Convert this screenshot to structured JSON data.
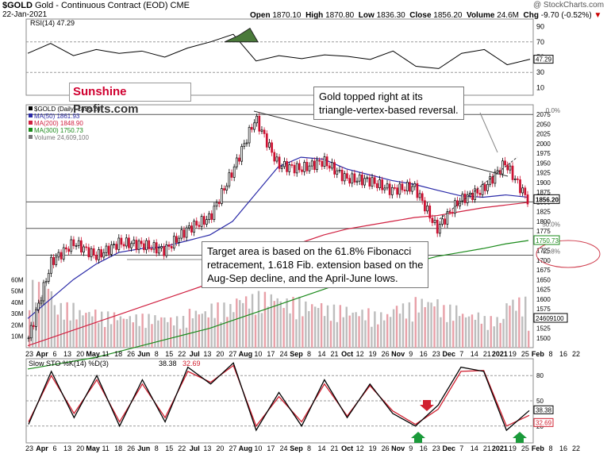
{
  "header": {
    "symbol": "$GOLD",
    "title": "Gold - Continuous Contract (EOD)",
    "exchange": "CME",
    "date": "22-Jan-2021",
    "open_label": "Open",
    "open": "1870.10",
    "high_label": "High",
    "high": "1870.80",
    "low_label": "Low",
    "low": "1836.30",
    "close_label": "Close",
    "close": "1856.20",
    "volume_label": "Volume",
    "volume": "24.6M",
    "chg_label": "Chg",
    "chg": "-9.70 (-0.52%)",
    "watermark": "@ StockCharts.com"
  },
  "logo": {
    "part1": "Sunshine",
    "part2": "Profits.com"
  },
  "annotations": {
    "top": "Gold topped right at its\ntriangle-vertex-based reversal.",
    "bottom": "Target area is based on the 61.8% Fibonacci\nretracement, 1.618 Fib. extension based on the\nAug-Sep decline, and the April-June lows."
  },
  "colors": {
    "up": "#000000",
    "down": "#cc1030",
    "ma50": "#2a2aa8",
    "ma200": "#d02040",
    "ma300": "#1a8a1a",
    "accent_green": "#1a9a3a"
  },
  "chart_data": [
    {
      "type": "line",
      "title": "RSI(14) 47.29",
      "legend": [
        "RSI(14) 47.29"
      ],
      "ylim": [
        0,
        100
      ],
      "yticks": [
        10,
        30,
        50,
        70,
        90
      ],
      "reference_lines": [
        30,
        70
      ],
      "last_value": "47.29",
      "x": [
        "Mar 23",
        "Apr 6",
        "Apr 20",
        "May 4",
        "May 18",
        "Jun 1",
        "Jun 15",
        "Jun 29",
        "Jul 13",
        "Jul 27",
        "Aug 10",
        "Aug 24",
        "Sep 8",
        "Sep 21",
        "Oct 5",
        "Oct 19",
        "Nov 2",
        "Nov 16",
        "Nov 30",
        "Dec 14",
        "Dec 28",
        "Jan 11",
        "Jan 22"
      ],
      "values": [
        55,
        68,
        52,
        60,
        55,
        58,
        50,
        62,
        70,
        80,
        45,
        52,
        48,
        53,
        51,
        47,
        58,
        38,
        35,
        55,
        60,
        40,
        47.29
      ]
    },
    {
      "type": "candlestick",
      "title": "$GOLD (Daily) 1856.20",
      "legend": [
        "$GOLD (Daily) 1856.20",
        "MA(50) 1861.93",
        "MA(200) 1848.90",
        "MA(300) 1750.73",
        "Volume 24,609,100"
      ],
      "xlabels": [
        "23",
        "Apr",
        "6",
        "13",
        "20",
        "May",
        "11",
        "18",
        "26",
        "Jun",
        "8",
        "15",
        "22",
        "Jul",
        "13",
        "20",
        "27",
        "Aug",
        "10",
        "17",
        "24",
        "Sep",
        "8",
        "14",
        "21",
        "Oct",
        "12",
        "19",
        "26",
        "Nov",
        "9",
        "16",
        "23",
        "Dec",
        "7",
        "14",
        "21",
        "2021",
        "19",
        "25",
        "Feb",
        "8",
        "16",
        "22"
      ],
      "ylim": [
        1475,
        2100
      ],
      "yticks": [
        1500,
        1525,
        1550,
        1575,
        1600,
        1625,
        1650,
        1675,
        1700,
        1725,
        1750,
        1775,
        1800,
        1825,
        1850,
        1875,
        1900,
        1925,
        1950,
        1975,
        2000,
        2025,
        2050,
        2075
      ],
      "volume_ticks": [
        "10M",
        "20M",
        "30M",
        "40M",
        "50M",
        "60M"
      ],
      "fib_levels": [
        {
          "label": "0.0%",
          "value": 2075
        },
        {
          "label": "38.2%",
          "value": 1850
        },
        {
          "label": "50.0%",
          "value": 1782
        },
        {
          "label": "61.8%",
          "value": 1713
        }
      ],
      "price_tags": {
        "close": "1856.20",
        "ma300": "1750.73",
        "volume": "24609100"
      },
      "x": [
        "Mar 23",
        "Apr 6",
        "Apr 20",
        "May 4",
        "May 18",
        "Jun 1",
        "Jun 15",
        "Jun 29",
        "Jul 13",
        "Jul 27",
        "Aug 7",
        "Aug 21",
        "Sep 4",
        "Sep 18",
        "Oct 2",
        "Oct 16",
        "Oct 30",
        "Nov 13",
        "Nov 30",
        "Dec 14",
        "Dec 28",
        "Jan 6",
        "Jan 22"
      ],
      "close": [
        1500,
        1695,
        1745,
        1710,
        1745,
        1740,
        1725,
        1780,
        1810,
        1930,
        2065,
        1945,
        1935,
        1955,
        1910,
        1905,
        1880,
        1890,
        1780,
        1855,
        1880,
        1950,
        1856.2
      ],
      "ma50": [
        1550,
        1600,
        1650,
        1690,
        1720,
        1730,
        1735,
        1750,
        1765,
        1800,
        1870,
        1940,
        1965,
        1960,
        1935,
        1920,
        1905,
        1895,
        1880,
        1866,
        1862,
        1868,
        1861.93
      ],
      "ma200": [
        1480,
        1500,
        1520,
        1540,
        1560,
        1580,
        1600,
        1620,
        1640,
        1660,
        1690,
        1720,
        1745,
        1765,
        1780,
        1790,
        1800,
        1810,
        1815,
        1825,
        1835,
        1842,
        1848.9
      ],
      "ma300": [
        1420,
        1430,
        1440,
        1450,
        1465,
        1480,
        1495,
        1510,
        1525,
        1545,
        1565,
        1585,
        1605,
        1625,
        1645,
        1665,
        1680,
        1695,
        1710,
        1720,
        1730,
        1742,
        1750.73
      ],
      "volume_millions": [
        60,
        40,
        35,
        32,
        30,
        30,
        28,
        35,
        40,
        48,
        50,
        45,
        42,
        38,
        35,
        32,
        40,
        45,
        38,
        32,
        28,
        45,
        24.6
      ]
    },
    {
      "type": "line",
      "title": "Slow STO %K(14) %D(3) 38.38, 32.69",
      "legend": [
        "Slow STO %K(14) %D(3)",
        "38.38",
        "32.69"
      ],
      "ylim": [
        0,
        100
      ],
      "yticks": [
        20,
        50,
        80
      ],
      "reference_lines": [
        20,
        50,
        80
      ],
      "xlabels": [
        "23",
        "Apr",
        "6",
        "13",
        "20",
        "May",
        "11",
        "18",
        "26",
        "Jun",
        "8",
        "15",
        "22",
        "Jul",
        "13",
        "20",
        "27",
        "Aug",
        "10",
        "17",
        "24",
        "Sep",
        "8",
        "14",
        "21",
        "Oct",
        "12",
        "19",
        "26",
        "Nov",
        "9",
        "16",
        "23",
        "Dec",
        "7",
        "14",
        "21",
        "2021",
        "19",
        "25",
        "Feb",
        "8",
        "16",
        "22"
      ],
      "series": [
        {
          "name": "%K(14)",
          "values": [
            22,
            85,
            30,
            80,
            20,
            75,
            25,
            90,
            70,
            95,
            15,
            60,
            20,
            75,
            30,
            70,
            35,
            20,
            45,
            90,
            85,
            15,
            38.38
          ]
        },
        {
          "name": "%D(3)",
          "values": [
            25,
            80,
            35,
            75,
            25,
            70,
            30,
            85,
            72,
            92,
            20,
            55,
            25,
            70,
            32,
            68,
            38,
            22,
            40,
            85,
            86,
            20,
            32.69
          ]
        }
      ],
      "markers": [
        {
          "type": "arrow-down",
          "color": "red",
          "x": "Nov 16"
        },
        {
          "type": "arrow-up",
          "color": "green",
          "x": "Nov 9"
        },
        {
          "type": "arrow-up",
          "color": "green",
          "x": "Jan 19"
        }
      ]
    }
  ]
}
